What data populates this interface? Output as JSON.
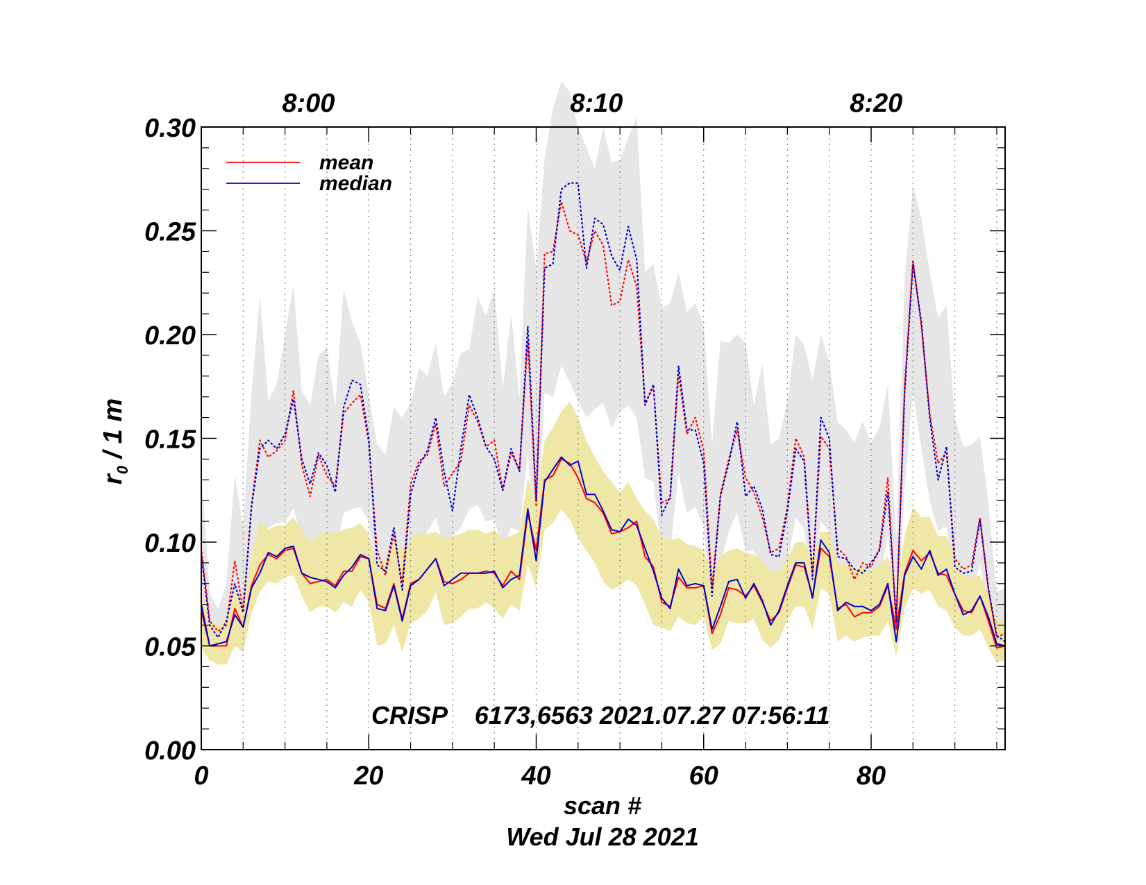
{
  "chart_data": {
    "type": "line",
    "title": "",
    "xlabel": "scan #",
    "xlabel2": "Wed Jul 28 2021",
    "ylabel_main": "r",
    "ylabel_sub": "0",
    "ylabel_rest": " / 1 m",
    "annotation": "CRISP    6173,6563 2021.07.27 07:56:11",
    "xlim": [
      0,
      96
    ],
    "ylim": [
      0.0,
      0.3
    ],
    "xticks": [
      0,
      20,
      40,
      60,
      80
    ],
    "xtick_labels": [
      "0",
      "20",
      "40",
      "60",
      "80"
    ],
    "yticks": [
      0.0,
      0.05,
      0.1,
      0.15,
      0.2,
      0.25,
      0.3
    ],
    "ytick_labels": [
      "0.00",
      "0.05",
      "0.10",
      "0.15",
      "0.20",
      "0.25",
      "0.30"
    ],
    "time_ticks": [
      {
        "x": 12.8,
        "label": "8:00"
      },
      {
        "x": 47.2,
        "label": "8:10"
      },
      {
        "x": 80.6,
        "label": "8:20"
      }
    ],
    "time_gridlines": [
      5,
      10,
      15,
      20,
      25,
      30,
      35,
      40,
      45,
      50,
      55,
      60,
      65,
      70,
      75,
      80,
      85,
      90,
      95
    ],
    "legend": [
      "mean",
      "median"
    ],
    "colors": {
      "mean": "#ff0000",
      "median": "#0000cc",
      "gray_band": "#e6e6e6",
      "yellow_band": "#efe7a6"
    },
    "x": [
      0,
      1,
      2,
      3,
      4,
      5,
      6,
      7,
      8,
      9,
      10,
      11,
      12,
      13,
      14,
      15,
      16,
      17,
      18,
      19,
      20,
      21,
      22,
      23,
      24,
      25,
      26,
      27,
      28,
      29,
      30,
      31,
      32,
      33,
      34,
      35,
      36,
      37,
      38,
      39,
      40,
      41,
      42,
      43,
      44,
      45,
      46,
      47,
      48,
      49,
      50,
      51,
      52,
      53,
      54,
      55,
      56,
      57,
      58,
      59,
      60,
      61,
      62,
      63,
      64,
      65,
      66,
      67,
      68,
      69,
      70,
      71,
      72,
      73,
      74,
      75,
      76,
      77,
      78,
      79,
      80,
      81,
      82,
      83,
      84,
      85,
      86,
      87,
      88,
      89,
      90,
      91,
      92,
      93,
      94,
      95,
      96
    ],
    "series": [
      {
        "name": "mean",
        "style": "solid",
        "color": "#ff0000",
        "values": [
          0.067,
          0.05,
          0.05,
          0.05,
          0.068,
          0.059,
          0.079,
          0.089,
          0.094,
          0.092,
          0.096,
          0.097,
          0.085,
          0.08,
          0.081,
          0.082,
          0.079,
          0.086,
          0.086,
          0.093,
          0.092,
          0.07,
          0.068,
          0.08,
          0.063,
          0.08,
          0.082,
          0.087,
          0.092,
          0.081,
          0.08,
          0.082,
          0.085,
          0.085,
          0.086,
          0.085,
          0.079,
          0.086,
          0.082,
          0.114,
          0.096,
          0.13,
          0.132,
          0.14,
          0.138,
          0.131,
          0.121,
          0.119,
          0.114,
          0.104,
          0.105,
          0.107,
          0.11,
          0.093,
          0.088,
          0.071,
          0.069,
          0.083,
          0.078,
          0.078,
          0.079,
          0.056,
          0.065,
          0.078,
          0.077,
          0.074,
          0.079,
          0.071,
          0.062,
          0.066,
          0.078,
          0.089,
          0.088,
          0.074,
          0.097,
          0.093,
          0.068,
          0.07,
          0.064,
          0.066,
          0.066,
          0.069,
          0.079,
          0.058,
          0.085,
          0.096,
          0.091,
          0.095,
          0.085,
          0.084,
          0.075,
          0.067,
          0.066,
          0.074,
          0.062,
          0.049,
          0.05
        ]
      },
      {
        "name": "median",
        "style": "solid",
        "color": "#0000cc",
        "values": [
          0.07,
          0.05,
          0.051,
          0.052,
          0.065,
          0.059,
          0.078,
          0.085,
          0.095,
          0.093,
          0.097,
          0.098,
          0.085,
          0.083,
          0.082,
          0.081,
          0.078,
          0.084,
          0.088,
          0.094,
          0.092,
          0.068,
          0.067,
          0.079,
          0.062,
          0.079,
          0.082,
          0.087,
          0.092,
          0.079,
          0.082,
          0.085,
          0.085,
          0.085,
          0.085,
          0.086,
          0.078,
          0.082,
          0.084,
          0.116,
          0.091,
          0.129,
          0.135,
          0.141,
          0.137,
          0.139,
          0.123,
          0.123,
          0.115,
          0.106,
          0.105,
          0.111,
          0.108,
          0.097,
          0.086,
          0.073,
          0.068,
          0.087,
          0.079,
          0.08,
          0.079,
          0.058,
          0.069,
          0.081,
          0.082,
          0.073,
          0.08,
          0.072,
          0.06,
          0.067,
          0.079,
          0.09,
          0.09,
          0.073,
          0.101,
          0.095,
          0.067,
          0.071,
          0.069,
          0.069,
          0.067,
          0.07,
          0.08,
          0.052,
          0.084,
          0.093,
          0.087,
          0.096,
          0.084,
          0.087,
          0.075,
          0.065,
          0.067,
          0.074,
          0.064,
          0.051,
          0.05
        ]
      },
      {
        "name": "mean_upper",
        "style": "dotted",
        "color": "#ff0000",
        "values": [
          0.097,
          0.062,
          0.057,
          0.06,
          0.091,
          0.067,
          0.118,
          0.149,
          0.141,
          0.144,
          0.149,
          0.173,
          0.137,
          0.122,
          0.142,
          0.132,
          0.127,
          0.162,
          0.167,
          0.171,
          0.148,
          0.096,
          0.084,
          0.104,
          0.08,
          0.128,
          0.139,
          0.142,
          0.157,
          0.127,
          0.133,
          0.139,
          0.166,
          0.158,
          0.146,
          0.149,
          0.125,
          0.143,
          0.135,
          0.197,
          0.117,
          0.239,
          0.24,
          0.264,
          0.25,
          0.248,
          0.235,
          0.25,
          0.243,
          0.214,
          0.216,
          0.236,
          0.223,
          0.167,
          0.175,
          0.119,
          0.121,
          0.181,
          0.152,
          0.16,
          0.144,
          0.078,
          0.123,
          0.14,
          0.154,
          0.131,
          0.124,
          0.112,
          0.095,
          0.097,
          0.117,
          0.15,
          0.141,
          0.085,
          0.151,
          0.145,
          0.097,
          0.093,
          0.082,
          0.09,
          0.088,
          0.097,
          0.131,
          0.061,
          0.175,
          0.236,
          0.204,
          0.162,
          0.138,
          0.143,
          0.092,
          0.087,
          0.089,
          0.112,
          0.077,
          0.054,
          0.056
        ]
      },
      {
        "name": "median_upper",
        "style": "dotted",
        "color": "#0000cc",
        "values": [
          0.094,
          0.06,
          0.054,
          0.062,
          0.08,
          0.066,
          0.117,
          0.145,
          0.149,
          0.145,
          0.152,
          0.169,
          0.14,
          0.128,
          0.143,
          0.137,
          0.124,
          0.165,
          0.178,
          0.176,
          0.15,
          0.089,
          0.086,
          0.107,
          0.077,
          0.123,
          0.137,
          0.144,
          0.16,
          0.134,
          0.115,
          0.145,
          0.171,
          0.16,
          0.146,
          0.14,
          0.125,
          0.145,
          0.134,
          0.204,
          0.12,
          0.232,
          0.234,
          0.27,
          0.273,
          0.273,
          0.232,
          0.256,
          0.253,
          0.238,
          0.231,
          0.252,
          0.236,
          0.166,
          0.176,
          0.113,
          0.122,
          0.185,
          0.154,
          0.154,
          0.138,
          0.074,
          0.122,
          0.138,
          0.158,
          0.122,
          0.127,
          0.116,
          0.094,
          0.093,
          0.115,
          0.145,
          0.139,
          0.082,
          0.16,
          0.15,
          0.093,
          0.092,
          0.087,
          0.085,
          0.09,
          0.096,
          0.124,
          0.062,
          0.172,
          0.234,
          0.206,
          0.16,
          0.13,
          0.146,
          0.088,
          0.085,
          0.086,
          0.111,
          0.078,
          0.055,
          0.052
        ]
      }
    ],
    "bands": [
      {
        "name": "gray_band",
        "color": "#e6e6e6",
        "upper": [
          0.135,
          0.075,
          0.068,
          0.08,
          0.132,
          0.108,
          0.172,
          0.219,
          0.168,
          0.176,
          0.2,
          0.224,
          0.173,
          0.166,
          0.19,
          0.194,
          0.165,
          0.222,
          0.206,
          0.196,
          0.171,
          0.147,
          0.142,
          0.165,
          0.16,
          0.167,
          0.184,
          0.18,
          0.196,
          0.17,
          0.177,
          0.191,
          0.193,
          0.218,
          0.209,
          0.222,
          0.174,
          0.21,
          0.169,
          0.262,
          0.231,
          0.285,
          0.309,
          0.322,
          0.317,
          0.3,
          0.29,
          0.28,
          0.3,
          0.283,
          0.284,
          0.295,
          0.305,
          0.23,
          0.234,
          0.213,
          0.215,
          0.23,
          0.211,
          0.215,
          0.204,
          0.147,
          0.197,
          0.196,
          0.2,
          0.196,
          0.166,
          0.186,
          0.147,
          0.15,
          0.168,
          0.2,
          0.195,
          0.178,
          0.2,
          0.187,
          0.158,
          0.154,
          0.148,
          0.158,
          0.148,
          0.155,
          0.176,
          0.101,
          0.227,
          0.272,
          0.256,
          0.23,
          0.208,
          0.214,
          0.16,
          0.146,
          0.147,
          0.151,
          0.119,
          0.076,
          0.078
        ],
        "lower": [
          0.067,
          0.055,
          0.052,
          0.051,
          0.067,
          0.07,
          0.085,
          0.103,
          0.107,
          0.109,
          0.11,
          0.116,
          0.103,
          0.095,
          0.097,
          0.101,
          0.094,
          0.114,
          0.116,
          0.117,
          0.11,
          0.079,
          0.068,
          0.085,
          0.066,
          0.097,
          0.1,
          0.105,
          0.112,
          0.097,
          0.103,
          0.107,
          0.116,
          0.118,
          0.11,
          0.111,
          0.095,
          0.107,
          0.105,
          0.143,
          0.095,
          0.172,
          0.17,
          0.185,
          0.177,
          0.168,
          0.16,
          0.164,
          0.167,
          0.155,
          0.163,
          0.166,
          0.16,
          0.131,
          0.129,
          0.093,
          0.095,
          0.133,
          0.114,
          0.117,
          0.108,
          0.064,
          0.09,
          0.105,
          0.114,
          0.096,
          0.096,
          0.087,
          0.077,
          0.078,
          0.09,
          0.112,
          0.106,
          0.075,
          0.11,
          0.105,
          0.078,
          0.081,
          0.078,
          0.079,
          0.077,
          0.081,
          0.104,
          0.058,
          0.126,
          0.172,
          0.145,
          0.12,
          0.105,
          0.108,
          0.078,
          0.076,
          0.077,
          0.089,
          0.065,
          0.049,
          0.048
        ]
      },
      {
        "name": "yellow_band",
        "color": "#efe7a6",
        "upper": [
          0.077,
          0.062,
          0.06,
          0.063,
          0.076,
          0.072,
          0.093,
          0.11,
          0.106,
          0.108,
          0.108,
          0.112,
          0.106,
          0.1,
          0.103,
          0.105,
          0.104,
          0.106,
          0.107,
          0.109,
          0.104,
          0.089,
          0.092,
          0.101,
          0.096,
          0.102,
          0.104,
          0.104,
          0.105,
          0.102,
          0.103,
          0.104,
          0.106,
          0.106,
          0.104,
          0.106,
          0.101,
          0.103,
          0.105,
          0.131,
          0.119,
          0.149,
          0.155,
          0.163,
          0.168,
          0.16,
          0.149,
          0.141,
          0.134,
          0.129,
          0.124,
          0.129,
          0.121,
          0.115,
          0.111,
          0.102,
          0.101,
          0.102,
          0.099,
          0.098,
          0.096,
          0.085,
          0.093,
          0.096,
          0.097,
          0.095,
          0.094,
          0.091,
          0.086,
          0.086,
          0.092,
          0.1,
          0.1,
          0.093,
          0.105,
          0.105,
          0.09,
          0.09,
          0.087,
          0.088,
          0.086,
          0.089,
          0.093,
          0.078,
          0.103,
          0.117,
          0.112,
          0.112,
          0.103,
          0.103,
          0.093,
          0.084,
          0.083,
          0.084,
          0.075,
          0.063,
          0.061
        ],
        "lower": [
          0.049,
          0.043,
          0.041,
          0.041,
          0.05,
          0.047,
          0.066,
          0.076,
          0.081,
          0.08,
          0.083,
          0.084,
          0.074,
          0.066,
          0.069,
          0.069,
          0.066,
          0.071,
          0.069,
          0.077,
          0.071,
          0.05,
          0.051,
          0.06,
          0.047,
          0.061,
          0.063,
          0.067,
          0.076,
          0.06,
          0.061,
          0.064,
          0.068,
          0.068,
          0.071,
          0.068,
          0.063,
          0.07,
          0.067,
          0.089,
          0.078,
          0.106,
          0.109,
          0.116,
          0.111,
          0.102,
          0.096,
          0.09,
          0.081,
          0.077,
          0.079,
          0.082,
          0.079,
          0.07,
          0.06,
          0.059,
          0.057,
          0.064,
          0.061,
          0.06,
          0.064,
          0.048,
          0.051,
          0.062,
          0.061,
          0.061,
          0.063,
          0.053,
          0.049,
          0.053,
          0.062,
          0.069,
          0.069,
          0.058,
          0.078,
          0.075,
          0.052,
          0.055,
          0.052,
          0.054,
          0.055,
          0.055,
          0.062,
          0.045,
          0.068,
          0.078,
          0.075,
          0.077,
          0.069,
          0.067,
          0.059,
          0.055,
          0.055,
          0.058,
          0.049,
          0.042,
          0.043
        ]
      }
    ]
  }
}
